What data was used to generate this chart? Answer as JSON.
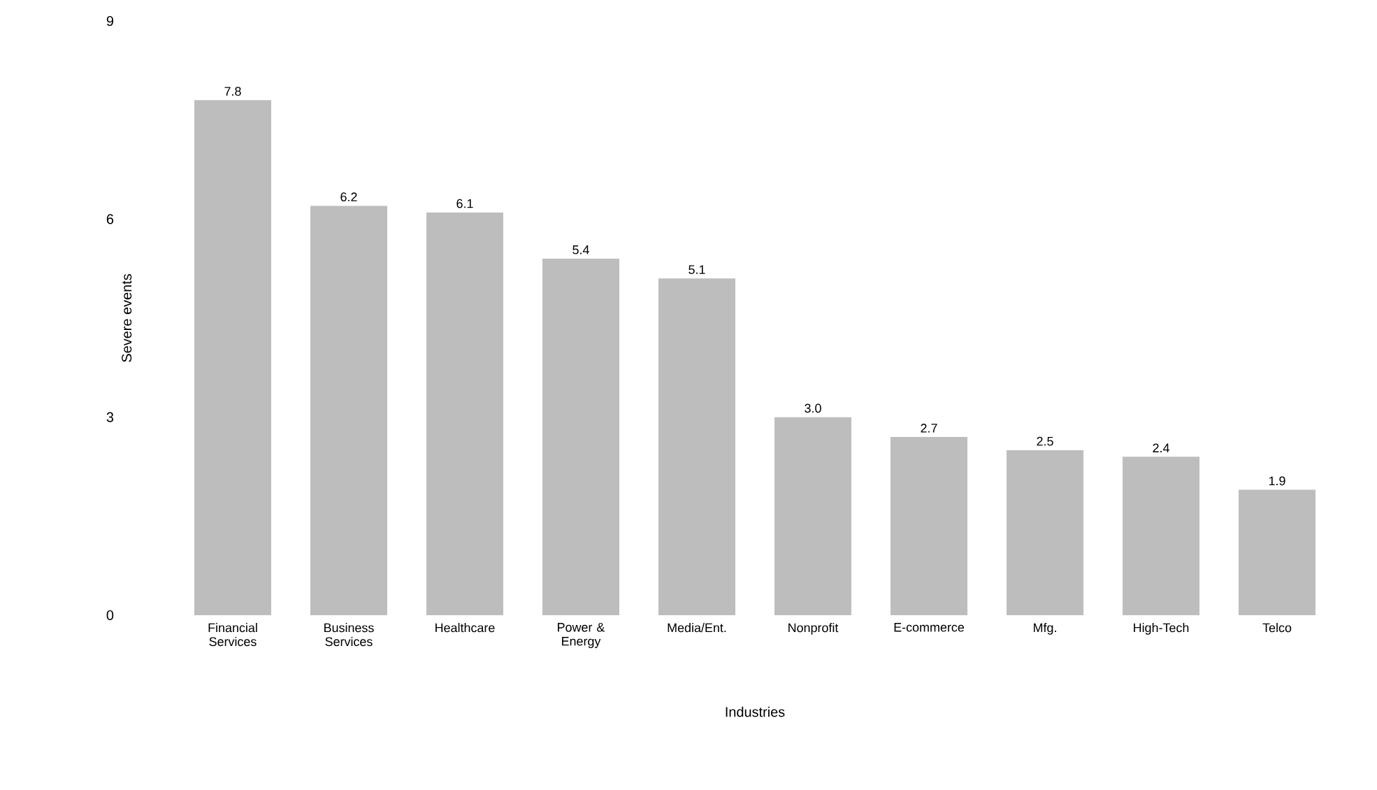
{
  "chart_data": {
    "type": "bar",
    "ylabel": "Severe events",
    "xlabel": "Industries",
    "categories": [
      "Financial Services",
      "Business Services",
      "Healthcare",
      "Power & Energy",
      "Media/Ent.",
      "Nonprofit",
      "E-commerce",
      "Mfg.",
      "High-Tech",
      "Telco"
    ],
    "values": [
      7.8,
      6.2,
      6.1,
      5.4,
      5.1,
      3.0,
      2.7,
      2.5,
      2.4,
      1.9
    ],
    "value_labels": [
      "7.8",
      "6.2",
      "6.1",
      "5.4",
      "5.1",
      "3.0",
      "2.7",
      "2.5",
      "2.4",
      "1.9"
    ],
    "color": "#bdbdbd",
    "ylim": [
      0,
      9
    ],
    "yticks": [
      0,
      3,
      6,
      9
    ],
    "grid": false
  }
}
